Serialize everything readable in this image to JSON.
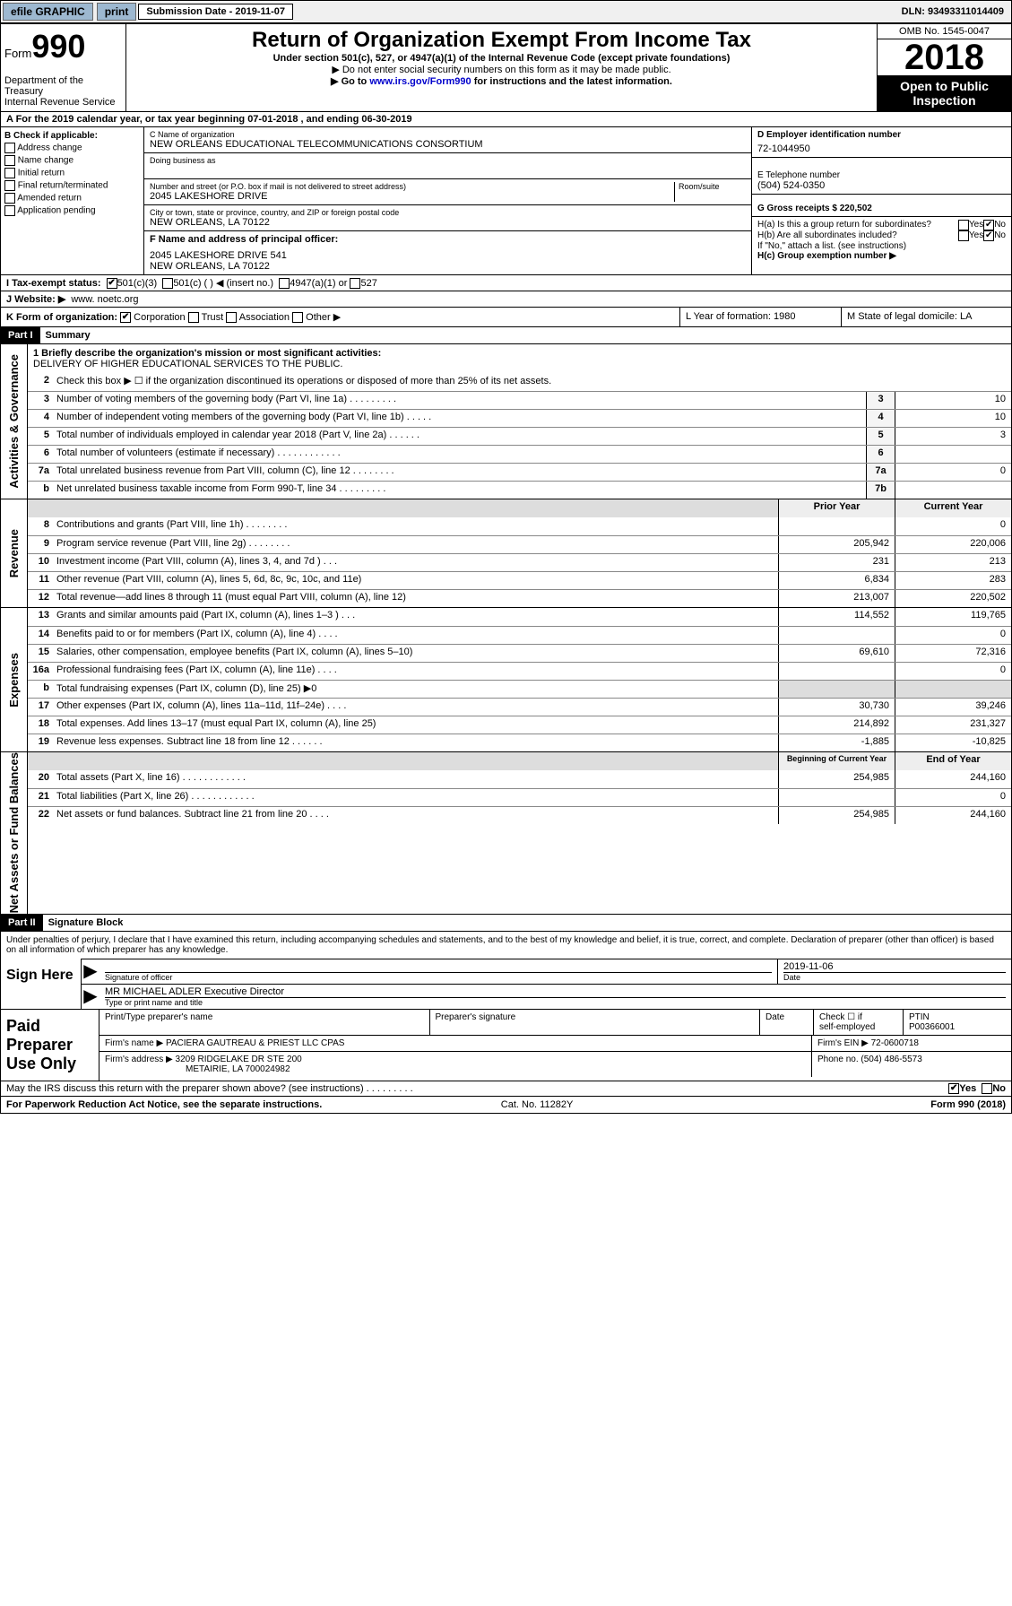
{
  "topbar": {
    "efile": "efile GRAPHIC",
    "print": "print",
    "sub_label": "Submission Date - 2019-11-07",
    "dln": "DLN: 93493311014409"
  },
  "header": {
    "form_prefix": "Form",
    "form_num": "990",
    "dept1": "Department of the Treasury",
    "dept2": "Internal Revenue Service",
    "title": "Return of Organization Exempt From Income Tax",
    "sub1": "Under section 501(c), 527, or 4947(a)(1) of the Internal Revenue Code (except private foundations)",
    "sub2": "▶ Do not enter social security numbers on this form as it may be made public.",
    "sub3_pre": "▶ Go to ",
    "sub3_link": "www.irs.gov/Form990",
    "sub3_post": " for instructions and the latest information.",
    "omb": "OMB No. 1545-0047",
    "year": "2018",
    "open": "Open to Public Inspection"
  },
  "rowA": "A For the 2019 calendar year, or tax year beginning 07-01-2018    , and ending 06-30-2019",
  "colB": {
    "head": "B Check if applicable:",
    "items": [
      "Address change",
      "Name change",
      "Initial return",
      "Final return/terminated",
      "Amended return",
      "Application pending"
    ]
  },
  "colC": {
    "name_lbl": "C Name of organization",
    "name": "NEW ORLEANS EDUCATIONAL TELECOMMUNICATIONS CONSORTIUM",
    "dba_lbl": "Doing business as",
    "addr_lbl": "Number and street (or P.O. box if mail is not delivered to street address)",
    "room_lbl": "Room/suite",
    "addr": "2045 LAKESHORE DRIVE",
    "city_lbl": "City or town, state or province, country, and ZIP or foreign postal code",
    "city": "NEW ORLEANS, LA  70122",
    "f_lbl": "F  Name and address of principal officer:",
    "f_addr1": "2045 LAKESHORE DRIVE 541",
    "f_addr2": "NEW ORLEANS, LA  70122"
  },
  "colD": {
    "ein_lbl": "D Employer identification number",
    "ein": "72-1044950",
    "tel_lbl": "E Telephone number",
    "tel": "(504) 524-0350",
    "gross_lbl": "G Gross receipts $ 220,502"
  },
  "colH": {
    "ha": "H(a)  Is this a group return for subordinates?",
    "hb": "H(b)  Are all subordinates included?",
    "hb_note": "If \"No,\" attach a list. (see instructions)",
    "hc": "H(c)  Group exemption number ▶",
    "yes": "Yes",
    "no": "No"
  },
  "rowI": {
    "lbl": "I  Tax-exempt status:",
    "o1": "501(c)(3)",
    "o2": "501(c) (  ) ◀ (insert no.)",
    "o3": "4947(a)(1) or",
    "o4": "527"
  },
  "rowJ": {
    "lbl": "J  Website: ▶",
    "val": " www. noetc.org"
  },
  "rowK": {
    "lbl": "K Form of organization:",
    "o1": "Corporation",
    "o2": "Trust",
    "o3": "Association",
    "o4": "Other ▶",
    "l": "L Year of formation: 1980",
    "m": "M State of legal domicile: LA"
  },
  "part1": {
    "hdr": "Part I",
    "title": "Summary"
  },
  "mission": {
    "lbl": "1  Briefly describe the organization's mission or most significant activities:",
    "text": "DELIVERY OF HIGHER EDUCATIONAL SERVICES TO THE PUBLIC."
  },
  "summary_lines": [
    {
      "n": "2",
      "d": "Check this box ▶ ☐  if the organization discontinued its operations or disposed of more than 25% of its net assets."
    },
    {
      "n": "3",
      "d": "Number of voting members of the governing body (Part VI, line 1a)   .    .    .    .    .    .    .    .    .",
      "box": "3",
      "v": "10"
    },
    {
      "n": "4",
      "d": "Number of independent voting members of the governing body (Part VI, line 1b)   .    .    .    .    .",
      "box": "4",
      "v": "10"
    },
    {
      "n": "5",
      "d": "Total number of individuals employed in calendar year 2018 (Part V, line 2a)   .    .    .    .    .    .",
      "box": "5",
      "v": "3"
    },
    {
      "n": "6",
      "d": "Total number of volunteers (estimate if necessary)   .    .    .    .    .    .    .    .    .    .    .    .",
      "box": "6",
      "v": ""
    },
    {
      "n": "7a",
      "d": "Total unrelated business revenue from Part VIII, column (C), line 12   .    .    .    .    .    .    .    .",
      "box": "7a",
      "v": "0"
    },
    {
      "n": "b",
      "d": "Net unrelated business taxable income from Form 990-T, line 34   .    .    .    .    .    .    .    .    .",
      "box": "7b",
      "v": ""
    }
  ],
  "revenue_hdr": {
    "prior": "Prior Year",
    "curr": "Current Year"
  },
  "revenue": [
    {
      "n": "8",
      "d": "Contributions and grants (Part VIII, line 1h)   .    .    .    .    .    .    .    .",
      "p": "",
      "c": "0"
    },
    {
      "n": "9",
      "d": "Program service revenue (Part VIII, line 2g)   .    .    .    .    .    .    .    .",
      "p": "205,942",
      "c": "220,006"
    },
    {
      "n": "10",
      "d": "Investment income (Part VIII, column (A), lines 3, 4, and 7d )   .    .    .",
      "p": "231",
      "c": "213"
    },
    {
      "n": "11",
      "d": "Other revenue (Part VIII, column (A), lines 5, 6d, 8c, 9c, 10c, and 11e)",
      "p": "6,834",
      "c": "283"
    },
    {
      "n": "12",
      "d": "Total revenue—add lines 8 through 11 (must equal Part VIII, column (A), line 12)",
      "p": "213,007",
      "c": "220,502"
    }
  ],
  "expenses": [
    {
      "n": "13",
      "d": "Grants and similar amounts paid (Part IX, column (A), lines 1–3 )   .    .    .",
      "p": "114,552",
      "c": "119,765"
    },
    {
      "n": "14",
      "d": "Benefits paid to or for members (Part IX, column (A), line 4)   .    .    .    .",
      "p": "",
      "c": "0"
    },
    {
      "n": "15",
      "d": "Salaries, other compensation, employee benefits (Part IX, column (A), lines 5–10)",
      "p": "69,610",
      "c": "72,316"
    },
    {
      "n": "16a",
      "d": "Professional fundraising fees (Part IX, column (A), line 11e)   .    .    .    .",
      "p": "",
      "c": "0"
    },
    {
      "n": "b",
      "d": "Total fundraising expenses (Part IX, column (D), line 25) ▶0",
      "nobox": true
    },
    {
      "n": "17",
      "d": "Other expenses (Part IX, column (A), lines 11a–11d, 11f–24e)   .    .    .    .",
      "p": "30,730",
      "c": "39,246"
    },
    {
      "n": "18",
      "d": "Total expenses. Add lines 13–17 (must equal Part IX, column (A), line 25)",
      "p": "214,892",
      "c": "231,327"
    },
    {
      "n": "19",
      "d": "Revenue less expenses. Subtract line 18 from line 12   .    .    .    .    .    .",
      "p": "-1,885",
      "c": "-10,825"
    }
  ],
  "netassets_hdr": {
    "prior": "Beginning of Current Year",
    "curr": "End of Year"
  },
  "netassets": [
    {
      "n": "20",
      "d": "Total assets (Part X, line 16)   .    .    .    .    .    .    .    .    .    .    .    .",
      "p": "254,985",
      "c": "244,160"
    },
    {
      "n": "21",
      "d": "Total liabilities (Part X, line 26)   .    .    .    .    .    .    .    .    .    .    .    .",
      "p": "",
      "c": "0"
    },
    {
      "n": "22",
      "d": "Net assets or fund balances. Subtract line 21 from line 20   .    .    .    .",
      "p": "254,985",
      "c": "244,160"
    }
  ],
  "part2": {
    "hdr": "Part II",
    "title": "Signature Block"
  },
  "sig": {
    "perjury": "Under penalties of perjury, I declare that I have examined this return, including accompanying schedules and statements, and to the best of my knowledge and belief, it is true, correct, and complete. Declaration of preparer (other than officer) is based on all information of which preparer has any knowledge.",
    "here": "Sign Here",
    "sig_officer": "Signature of officer",
    "date": "2019-11-06",
    "date_lbl": "Date",
    "name": "MR MICHAEL ADLER  Executive Director",
    "name_lbl": "Type or print name and title"
  },
  "prep": {
    "left": "Paid Preparer Use Only",
    "h1": "Print/Type preparer's name",
    "h2": "Preparer's signature",
    "h3": "Date",
    "h4_a": "Check ☐ if",
    "h4_b": "self-employed",
    "h5": "PTIN",
    "ptin": "P00366001",
    "firm_lbl": "Firm's name    ▶",
    "firm": "PACIERA GAUTREAU & PRIEST LLC CPAS",
    "ein_lbl": "Firm's EIN ▶",
    "ein": "72-0600718",
    "addr_lbl": "Firm's address ▶",
    "addr1": "3209 RIDGELAKE DR STE 200",
    "addr2": "METAIRIE, LA  700024982",
    "phone_lbl": "Phone no.",
    "phone": "(504) 486-5573"
  },
  "discuss": {
    "q": "May the IRS discuss this return with the preparer shown above? (see instructions)    .    .    .    .    .    .    .    .    .",
    "yes": "Yes",
    "no": "No"
  },
  "footer": {
    "l": "For Paperwork Reduction Act Notice, see the separate instructions.",
    "m": "Cat. No. 11282Y",
    "r": "Form 990 (2018)"
  },
  "side_labels": {
    "ag": "Activities & Governance",
    "rev": "Revenue",
    "exp": "Expenses",
    "na": "Net Assets or Fund Balances"
  }
}
